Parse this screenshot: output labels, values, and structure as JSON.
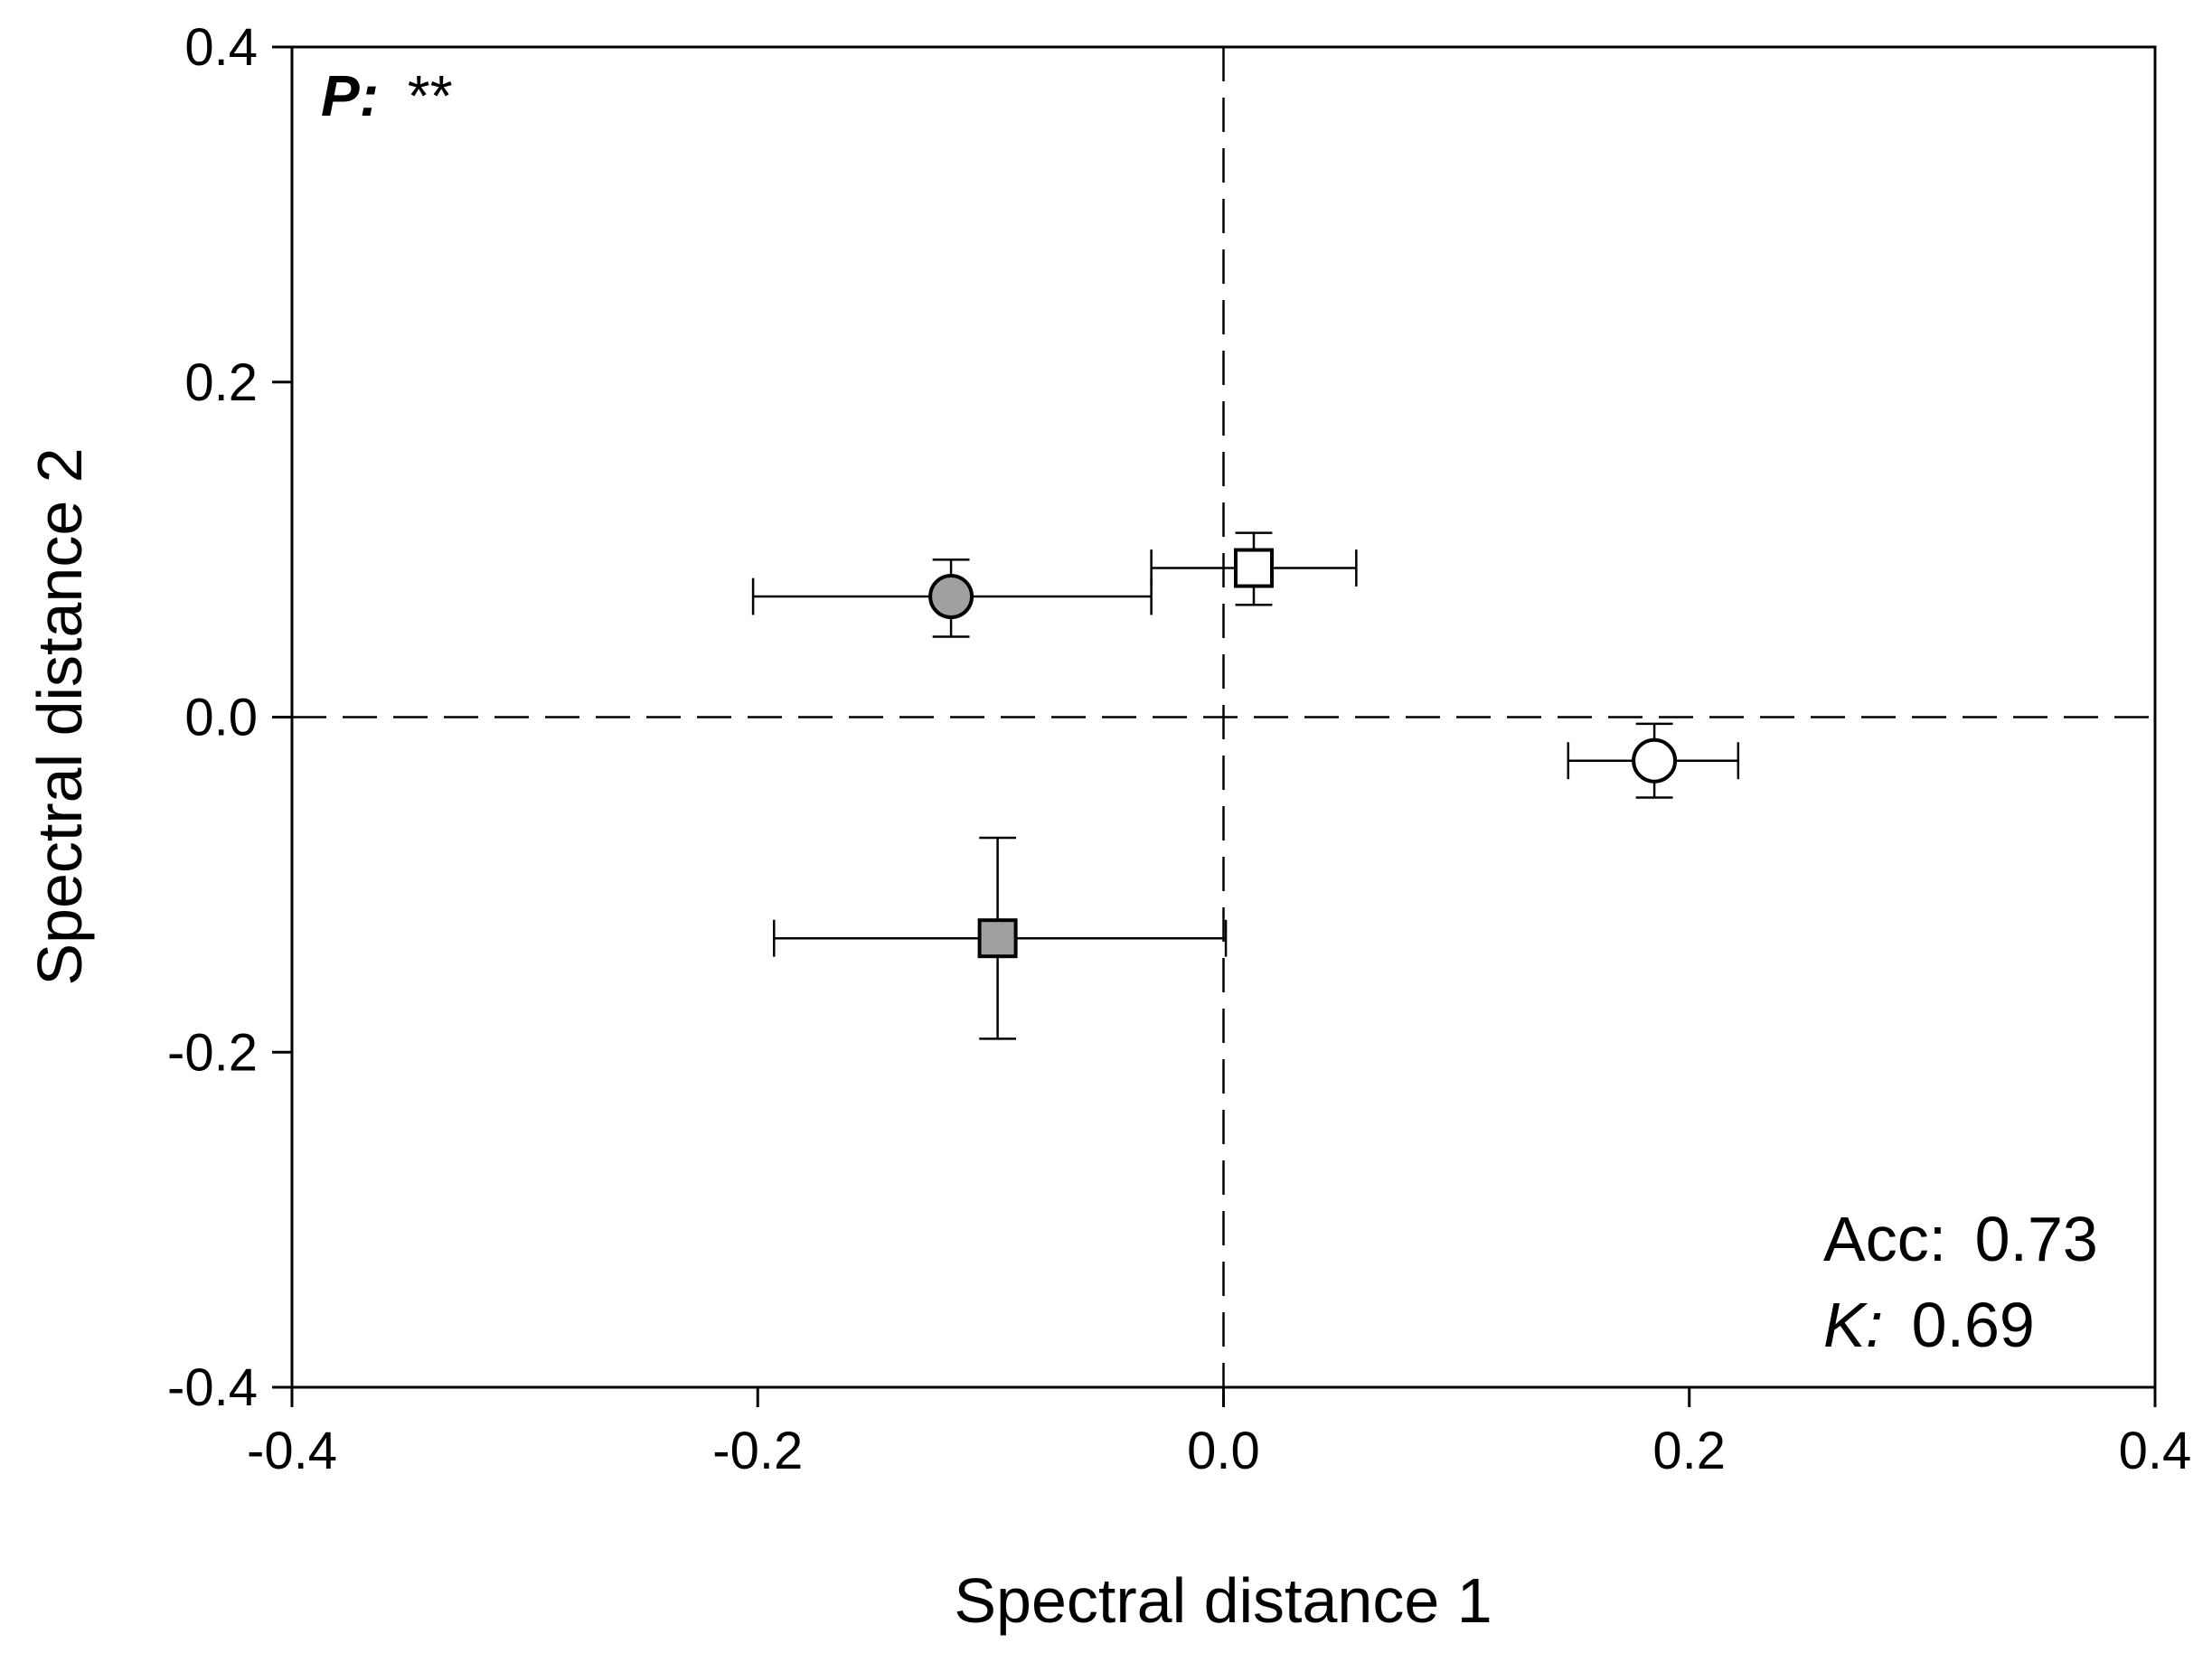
{
  "chart_data": {
    "type": "scatter",
    "xlabel": "Spectral distance 1",
    "ylabel": "Spectral distance 2",
    "xlim": [
      -0.4,
      0.4
    ],
    "ylim": [
      -0.4,
      0.4
    ],
    "xticks": [
      "-0.4",
      "-0.2",
      "0.0",
      "0.2",
      "0.4"
    ],
    "yticks": [
      "0.4",
      "0.2",
      "0.0",
      "-0.2",
      "-0.4"
    ],
    "x_tick_values": [
      -0.4,
      -0.2,
      0.0,
      0.2,
      0.4
    ],
    "y_tick_values": [
      0.4,
      0.2,
      0.0,
      -0.2,
      -0.4
    ],
    "reference_lines": {
      "x": 0.0,
      "y": 0.0,
      "style": "dashed"
    },
    "points": [
      {
        "marker": "circle",
        "fill": "#a0a0a0",
        "x": -0.117,
        "y": 0.072,
        "x_err_low": -0.202,
        "x_err_high": -0.031,
        "y_err_low": 0.048,
        "y_err_high": 0.094
      },
      {
        "marker": "square",
        "fill": "#ffffff",
        "x": 0.013,
        "y": 0.089,
        "x_err_low": -0.031,
        "x_err_high": 0.057,
        "y_err_low": 0.067,
        "y_err_high": 0.11
      },
      {
        "marker": "circle",
        "fill": "#ffffff",
        "x": 0.185,
        "y": -0.026,
        "x_err_low": 0.148,
        "x_err_high": 0.221,
        "y_err_low": -0.048,
        "y_err_high": -0.004
      },
      {
        "marker": "square",
        "fill": "#a0a0a0",
        "x": -0.097,
        "y": -0.132,
        "x_err_low": -0.193,
        "x_err_high": 0.001,
        "y_err_low": -0.192,
        "y_err_high": -0.072
      }
    ],
    "annotations": {
      "p_label": "P:",
      "p_value": "**",
      "acc_label": "Acc:",
      "acc_value": "0.73",
      "k_label": "K:",
      "k_value": "0.69"
    }
  }
}
